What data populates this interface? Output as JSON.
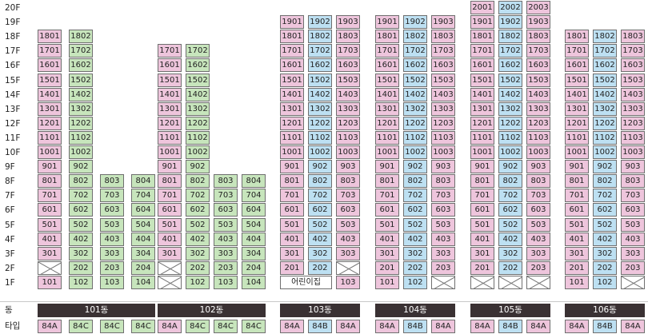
{
  "floor_labels": [
    "20F",
    "19F",
    "18F",
    "17F",
    "16F",
    "15F",
    "14F",
    "13F",
    "12F",
    "11F",
    "10F",
    "9F",
    "8F",
    "7F",
    "6F",
    "5F",
    "4F",
    "3F",
    "2F",
    "1F"
  ],
  "row_labels": {
    "building": "동",
    "type": "타입"
  },
  "colors": {
    "pink": "#eec5dc",
    "blue": "#bde0f2",
    "green": "#c7e5bc",
    "header": "#3a3133"
  },
  "buildings": [
    {
      "name": "101동",
      "types": [
        "84A",
        "84C",
        "84C",
        "84C"
      ],
      "type_colors": [
        "pink",
        "green",
        "green",
        "green"
      ],
      "lines": [
        {
          "color": "pink",
          "top": 18,
          "missing": [
            2
          ]
        },
        {
          "color": "green",
          "top": 18,
          "missing": []
        },
        {
          "color": "green",
          "top": 8,
          "missing": []
        },
        {
          "color": "green",
          "top": 8,
          "missing": []
        }
      ]
    },
    {
      "name": "102동",
      "types": [
        "84A",
        "84C",
        "84C",
        "84C"
      ],
      "type_colors": [
        "pink",
        "green",
        "green",
        "green"
      ],
      "lines": [
        {
          "color": "pink",
          "top": 17,
          "missing": [
            1,
            2
          ]
        },
        {
          "color": "green",
          "top": 17,
          "missing": []
        },
        {
          "color": "green",
          "top": 8,
          "missing": []
        },
        {
          "color": "green",
          "top": 8,
          "missing": []
        }
      ]
    },
    {
      "name": "103동",
      "types": [
        "84A",
        "84B",
        "84A"
      ],
      "type_colors": [
        "pink",
        "blue",
        "pink"
      ],
      "note": "어린이집",
      "lines": [
        {
          "color": "pink",
          "top": 19,
          "missing": []
        },
        {
          "color": "blue",
          "top": 19,
          "missing": []
        },
        {
          "color": "pink",
          "top": 19,
          "missing": [
            2
          ]
        }
      ]
    },
    {
      "name": "104동",
      "types": [
        "84A",
        "84B",
        "84A"
      ],
      "type_colors": [
        "pink",
        "blue",
        "pink"
      ],
      "lines": [
        {
          "color": "pink",
          "top": 19,
          "missing": []
        },
        {
          "color": "blue",
          "top": 19,
          "missing": []
        },
        {
          "color": "pink",
          "top": 19,
          "missing": [
            1
          ]
        }
      ]
    },
    {
      "name": "105동",
      "types": [
        "84A",
        "84B",
        "84A"
      ],
      "type_colors": [
        "pink",
        "blue",
        "pink"
      ],
      "lines": [
        {
          "color": "pink",
          "top": 20,
          "missing": [
            1
          ]
        },
        {
          "color": "blue",
          "top": 20,
          "missing": [
            1
          ]
        },
        {
          "color": "pink",
          "top": 20,
          "missing": [
            1
          ]
        }
      ]
    },
    {
      "name": "106동",
      "types": [
        "84A",
        "84B",
        "84A"
      ],
      "type_colors": [
        "pink",
        "blue",
        "pink"
      ],
      "lines": [
        {
          "color": "pink",
          "top": 18,
          "missing": []
        },
        {
          "color": "blue",
          "top": 18,
          "missing": []
        },
        {
          "color": "pink",
          "top": 18,
          "missing": [
            1
          ]
        }
      ]
    }
  ]
}
